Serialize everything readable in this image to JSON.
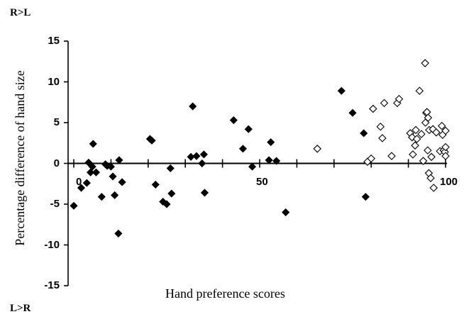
{
  "chart_data": {
    "type": "scatter",
    "title": "",
    "xlabel": "Hand preference scores",
    "ylabel": "Percentage difference of hand size",
    "corner_labels": {
      "top": "R>L",
      "bottom": "L>R"
    },
    "xlim": [
      0,
      100
    ],
    "ylim": [
      -15,
      15
    ],
    "x_ticks": [
      0,
      50,
      100
    ],
    "y_ticks": [
      15,
      10,
      5,
      0,
      -5,
      -10,
      -15
    ],
    "x_tick_labels": [
      "0",
      "50",
      "100"
    ],
    "y_tick_labels": [
      "15",
      "10",
      "5",
      "0",
      "-5",
      "-10",
      "-15"
    ],
    "grid": false,
    "series": [
      {
        "marker": "filled-diamond",
        "color": "#000000",
        "points": [
          [
            0,
            -5.2
          ],
          [
            2,
            -3.0
          ],
          [
            3.5,
            -2.4
          ],
          [
            4,
            0.1
          ],
          [
            4.5,
            -1.1
          ],
          [
            5,
            -0.4
          ],
          [
            5.2,
            2.4
          ],
          [
            6,
            -1.1
          ],
          [
            7.5,
            -4.1
          ],
          [
            8.5,
            -0.1
          ],
          [
            9,
            -0.3
          ],
          [
            10,
            -0.4
          ],
          [
            10.5,
            -1.6
          ],
          [
            11,
            -3.9
          ],
          [
            12,
            -8.6
          ],
          [
            12.2,
            0.4
          ],
          [
            13,
            -2.3
          ],
          [
            20.5,
            3.0
          ],
          [
            21,
            2.8
          ],
          [
            22,
            -2.6
          ],
          [
            24,
            -4.7
          ],
          [
            25,
            -5.0
          ],
          [
            26,
            -0.6
          ],
          [
            26.3,
            -3.7
          ],
          [
            31.5,
            0.8
          ],
          [
            32,
            7.0
          ],
          [
            33,
            0.9
          ],
          [
            34.5,
            0.0
          ],
          [
            35,
            1.1
          ],
          [
            35.2,
            -3.6
          ],
          [
            43,
            5.3
          ],
          [
            45.5,
            1.8
          ],
          [
            47,
            4.2
          ],
          [
            48,
            -0.4
          ],
          [
            52.5,
            0.4
          ],
          [
            53,
            2.6
          ],
          [
            54.5,
            0.3
          ],
          [
            57,
            -6.0
          ],
          [
            72,
            8.9
          ],
          [
            75,
            6.2
          ],
          [
            78,
            3.7
          ],
          [
            78.5,
            -4.1
          ]
        ]
      },
      {
        "marker": "open-diamond",
        "color": "#000000",
        "points": [
          [
            65.5,
            1.8
          ],
          [
            79,
            0.2
          ],
          [
            80,
            0.6
          ],
          [
            80.5,
            6.7
          ],
          [
            82.5,
            4.5
          ],
          [
            83,
            3.1
          ],
          [
            83.5,
            7.4
          ],
          [
            85.5,
            0.9
          ],
          [
            87,
            7.4
          ],
          [
            87.5,
            7.9
          ],
          [
            90.5,
            3.7
          ],
          [
            91,
            3.2
          ],
          [
            91.2,
            1.1
          ],
          [
            91.8,
            2.2
          ],
          [
            92,
            4.1
          ],
          [
            92.3,
            3.0
          ],
          [
            93,
            8.9
          ],
          [
            93.5,
            3.6
          ],
          [
            94,
            0.3
          ],
          [
            94.5,
            12.3
          ],
          [
            94.6,
            5.0
          ],
          [
            94.8,
            6.2
          ],
          [
            95,
            6.3
          ],
          [
            95.2,
            1.6
          ],
          [
            95.3,
            5.6
          ],
          [
            95.6,
            4.1
          ],
          [
            95.5,
            -1.2
          ],
          [
            96,
            -1.8
          ],
          [
            96.2,
            0.8
          ],
          [
            96.6,
            4.2
          ],
          [
            96.8,
            -3.0
          ],
          [
            97.5,
            3.8
          ],
          [
            98.5,
            1.5
          ],
          [
            99,
            4.6
          ],
          [
            99.2,
            3.5
          ],
          [
            99.5,
            1.6
          ],
          [
            99.8,
            1.4
          ],
          [
            100,
            0.9
          ],
          [
            100,
            2.0
          ],
          [
            100,
            4.0
          ]
        ]
      }
    ]
  }
}
